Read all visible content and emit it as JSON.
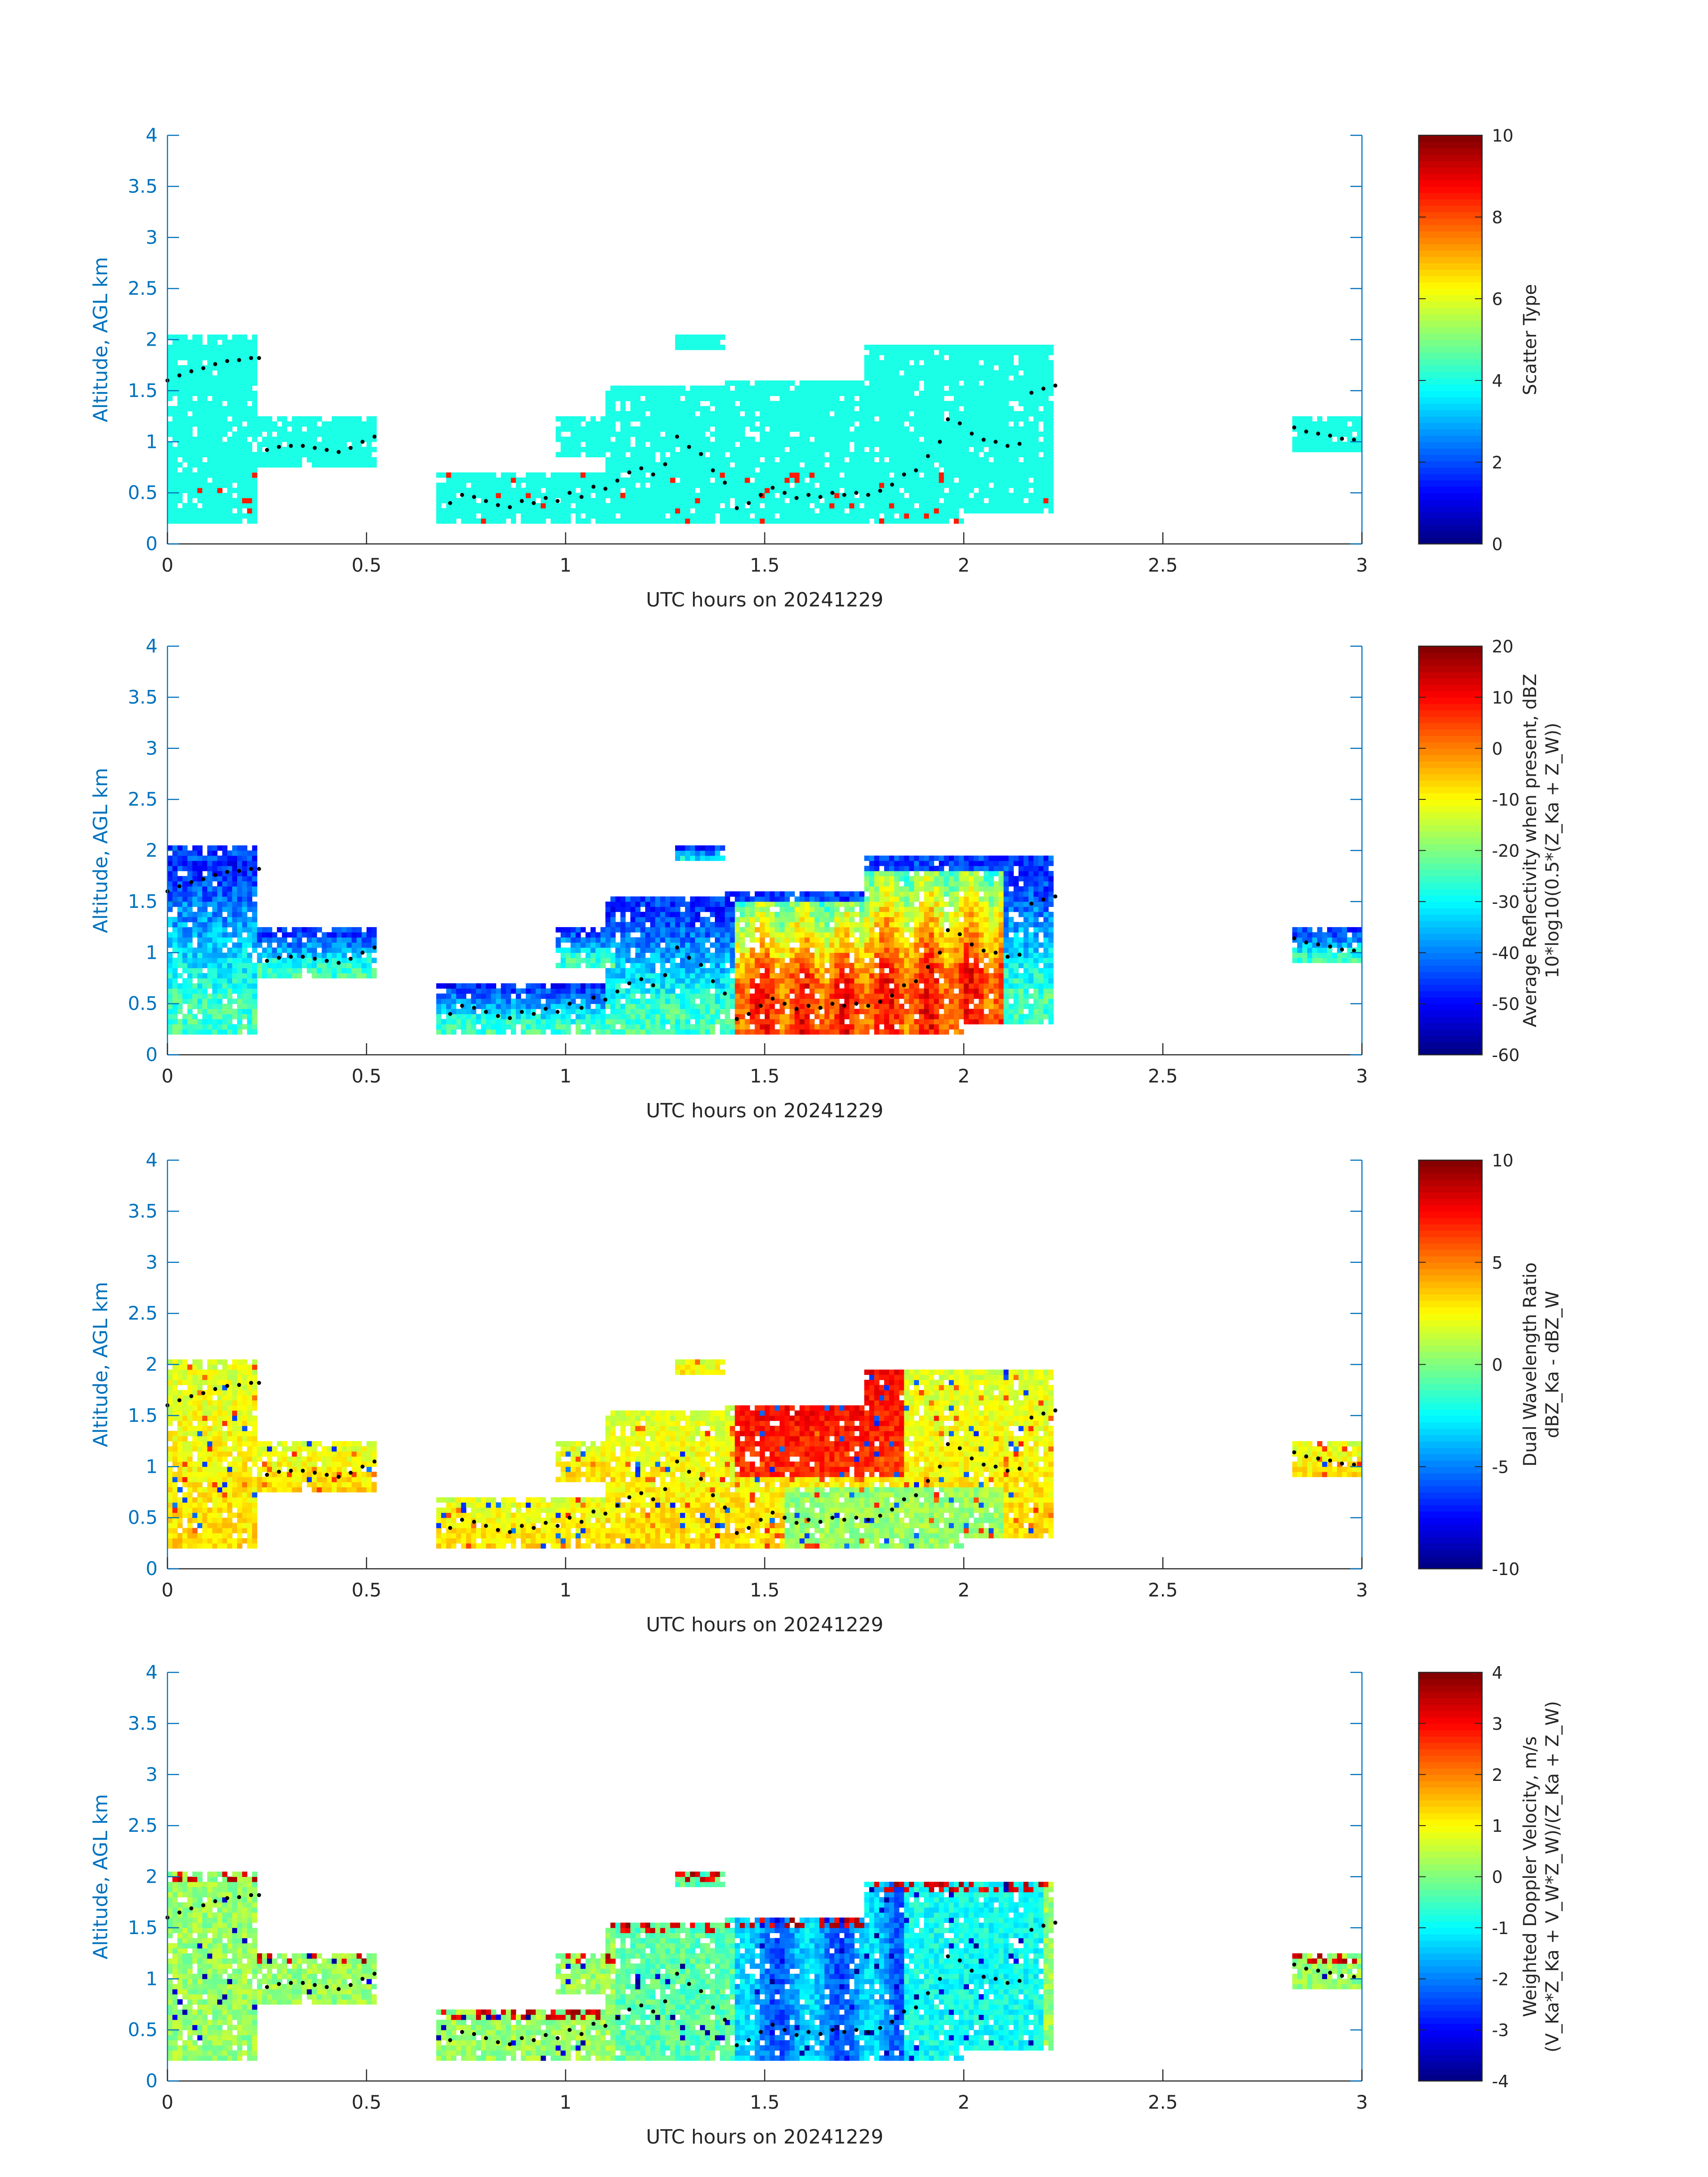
{
  "chart_data": [
    {
      "type": "heatmap",
      "xlabel": "UTC hours on 20241229",
      "ylabel": "Altitude, AGL km",
      "xlim": [
        0,
        3
      ],
      "ylim": [
        0,
        4
      ],
      "xticks": [
        "0",
        "0.5",
        "1",
        "1.5",
        "2",
        "2.5",
        "3"
      ],
      "yticks": [
        "0",
        "0.5",
        "1",
        "1.5",
        "2",
        "2.5",
        "3",
        "3.5",
        "4"
      ],
      "colorbar": {
        "label_lines": [
          "Scatter Type"
        ],
        "range": [
          0,
          10
        ],
        "ticks": [
          "0",
          "2",
          "4",
          "6",
          "8",
          "10"
        ]
      },
      "field": "scatter_type",
      "dominant_value": 4.0
    },
    {
      "type": "heatmap",
      "xlabel": "UTC hours on 20241229",
      "ylabel": "Altitude, AGL km",
      "xlim": [
        0,
        3
      ],
      "ylim": [
        0,
        4
      ],
      "xticks": [
        "0",
        "0.5",
        "1",
        "1.5",
        "2",
        "2.5",
        "3"
      ],
      "yticks": [
        "0",
        "0.5",
        "1",
        "1.5",
        "2",
        "2.5",
        "3",
        "3.5",
        "4"
      ],
      "colorbar": {
        "label_lines": [
          "Average Reflectivity when present, dBZ",
          "10*log10(0.5*(Z_Ka + Z_W))"
        ],
        "range": [
          -60,
          20
        ],
        "ticks": [
          "-60",
          "-50",
          "-40",
          "-30",
          "-20",
          "-10",
          "0",
          "10",
          "20"
        ]
      },
      "field": "reflectivity"
    },
    {
      "type": "heatmap",
      "xlabel": "UTC hours on 20241229",
      "ylabel": "Altitude, AGL km",
      "xlim": [
        0,
        3
      ],
      "ylim": [
        0,
        4
      ],
      "xticks": [
        "0",
        "0.5",
        "1",
        "1.5",
        "2",
        "2.5",
        "3"
      ],
      "yticks": [
        "0",
        "0.5",
        "1",
        "1.5",
        "2",
        "2.5",
        "3",
        "3.5",
        "4"
      ],
      "colorbar": {
        "label_lines": [
          "Dual Wavelength Ratio",
          "dBZ_Ka - dBZ_W"
        ],
        "range": [
          -10,
          10
        ],
        "ticks": [
          "-10",
          "-5",
          "0",
          "5",
          "10"
        ]
      },
      "field": "dwr"
    },
    {
      "type": "heatmap",
      "xlabel": "UTC hours on 20241229",
      "ylabel": "Altitude, AGL km",
      "xlim": [
        0,
        3
      ],
      "ylim": [
        0,
        4
      ],
      "xticks": [
        "0",
        "0.5",
        "1",
        "1.5",
        "2",
        "2.5",
        "3"
      ],
      "yticks": [
        "0",
        "0.5",
        "1",
        "1.5",
        "2",
        "2.5",
        "3",
        "3.5",
        "4"
      ],
      "colorbar": {
        "label_lines": [
          "Weighted Doppler Velocity, m/s",
          "(V_Ka*Z_Ka + V_W*Z_W)/(Z_Ka + Z_W)"
        ],
        "range": [
          -4,
          4
        ],
        "ticks": [
          "-4",
          "-3",
          "-2",
          "-1",
          "0",
          "1",
          "2",
          "3",
          "4"
        ]
      },
      "field": "velocity"
    }
  ],
  "cloud_regions": [
    {
      "t0": 0.0,
      "t1": 0.23,
      "bottom": 0.2,
      "top": 2.05
    },
    {
      "t0": 0.23,
      "t1": 0.53,
      "bottom": 0.75,
      "top": 1.25
    },
    {
      "t0": 0.68,
      "t1": 1.1,
      "bottom": 0.2,
      "top": 0.72
    },
    {
      "t0": 0.97,
      "t1": 1.12,
      "bottom": 0.85,
      "top": 1.25
    },
    {
      "t0": 1.1,
      "t1": 1.4,
      "bottom": 0.2,
      "top": 1.55
    },
    {
      "t0": 1.28,
      "t1": 1.4,
      "bottom": 1.9,
      "top": 2.05
    },
    {
      "t0": 1.4,
      "t1": 1.75,
      "bottom": 0.2,
      "top": 1.62
    },
    {
      "t0": 1.75,
      "t1": 2.0,
      "bottom": 0.2,
      "top": 1.95
    },
    {
      "t0": 2.0,
      "t1": 2.22,
      "bottom": 0.3,
      "top": 1.95
    },
    {
      "t0": 2.82,
      "t1": 3.0,
      "bottom": 0.9,
      "top": 1.25
    }
  ],
  "cloud_top_dots": [
    [
      0.0,
      1.6
    ],
    [
      0.03,
      1.65
    ],
    [
      0.06,
      1.69
    ],
    [
      0.09,
      1.72
    ],
    [
      0.12,
      1.76
    ],
    [
      0.15,
      1.79
    ],
    [
      0.18,
      1.8
    ],
    [
      0.21,
      1.82
    ],
    [
      0.23,
      1.82
    ],
    [
      0.25,
      0.92
    ],
    [
      0.28,
      0.95
    ],
    [
      0.31,
      0.96
    ],
    [
      0.34,
      0.96
    ],
    [
      0.37,
      0.94
    ],
    [
      0.4,
      0.92
    ],
    [
      0.43,
      0.9
    ],
    [
      0.46,
      0.94
    ],
    [
      0.49,
      1.0
    ],
    [
      0.52,
      1.05
    ],
    [
      0.71,
      0.4
    ],
    [
      0.74,
      0.48
    ],
    [
      0.77,
      0.46
    ],
    [
      0.8,
      0.42
    ],
    [
      0.83,
      0.38
    ],
    [
      0.86,
      0.36
    ],
    [
      0.89,
      0.42
    ],
    [
      0.92,
      0.4
    ],
    [
      0.95,
      0.45
    ],
    [
      0.98,
      0.42
    ],
    [
      1.01,
      0.5
    ],
    [
      1.04,
      0.46
    ],
    [
      1.07,
      0.56
    ],
    [
      1.1,
      0.54
    ],
    [
      1.13,
      0.62
    ],
    [
      1.16,
      0.7
    ],
    [
      1.19,
      0.74
    ],
    [
      1.22,
      0.68
    ],
    [
      1.25,
      0.78
    ],
    [
      1.28,
      1.05
    ],
    [
      1.31,
      0.95
    ],
    [
      1.34,
      0.88
    ],
    [
      1.37,
      0.72
    ],
    [
      1.4,
      0.6
    ],
    [
      1.43,
      0.35
    ],
    [
      1.46,
      0.4
    ],
    [
      1.49,
      0.48
    ],
    [
      1.52,
      0.55
    ],
    [
      1.55,
      0.5
    ],
    [
      1.58,
      0.45
    ],
    [
      1.61,
      0.48
    ],
    [
      1.64,
      0.46
    ],
    [
      1.67,
      0.5
    ],
    [
      1.7,
      0.48
    ],
    [
      1.73,
      0.5
    ],
    [
      1.76,
      0.48
    ],
    [
      1.79,
      0.52
    ],
    [
      1.82,
      0.58
    ],
    [
      1.85,
      0.68
    ],
    [
      1.88,
      0.72
    ],
    [
      1.91,
      0.86
    ],
    [
      1.94,
      1.0
    ],
    [
      1.96,
      1.22
    ],
    [
      1.99,
      1.18
    ],
    [
      2.02,
      1.08
    ],
    [
      2.05,
      1.02
    ],
    [
      2.08,
      1.0
    ],
    [
      2.11,
      0.96
    ],
    [
      2.14,
      0.98
    ],
    [
      2.17,
      1.48
    ],
    [
      2.2,
      1.52
    ],
    [
      2.23,
      1.55
    ],
    [
      2.83,
      1.14
    ],
    [
      2.86,
      1.1
    ],
    [
      2.89,
      1.08
    ],
    [
      2.92,
      1.06
    ],
    [
      2.95,
      1.03
    ],
    [
      2.98,
      1.02
    ]
  ],
  "colors": {
    "axis": "#0072bd",
    "text": "#262626",
    "dot": "#000000"
  }
}
